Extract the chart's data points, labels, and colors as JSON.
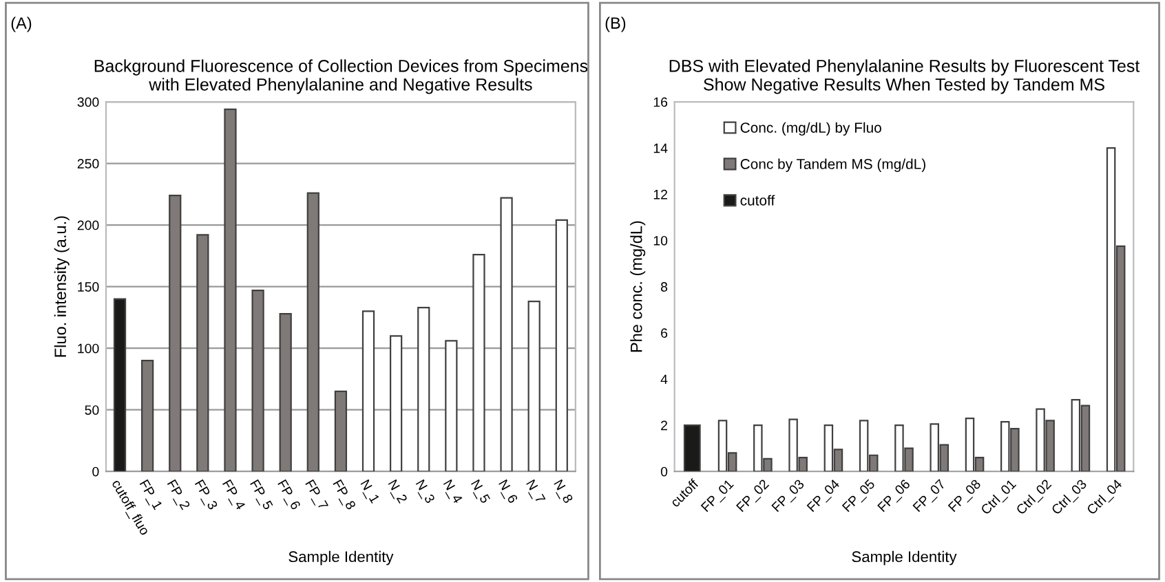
{
  "chart_data": [
    {
      "type": "bar",
      "title": "Background Fluorescence of Collection Devices from Specimens\nwith Elevated Phenylalanine and Negative Results",
      "xlabel": "Sample Identity",
      "ylabel": "Fluo. intensity (a.u.)",
      "annotations": [
        "(A)"
      ],
      "categories": [
        "cutoff_fluo",
        "FP_1",
        "FP_2",
        "FP_3",
        "FP_4",
        "FP_5",
        "FP_6",
        "FP_7",
        "FP_8",
        "N_1",
        "N_2",
        "N_3",
        "N_4",
        "N_5",
        "N_6",
        "N_7",
        "N_8"
      ],
      "values": [
        140,
        90,
        224,
        192,
        294,
        147,
        128,
        226,
        65,
        130,
        110,
        133,
        106,
        176,
        222,
        138,
        204
      ],
      "colors": [
        "#1a1a18",
        "#7f7a78",
        "#7f7a78",
        "#7f7a78",
        "#7f7a78",
        "#7f7a78",
        "#7f7a78",
        "#7f7a78",
        "#7f7a78",
        "#ffffff",
        "#ffffff",
        "#ffffff",
        "#ffffff",
        "#ffffff",
        "#ffffff",
        "#ffffff",
        "#ffffff"
      ],
      "ylim": [
        0,
        300
      ],
      "yticks": [
        0,
        50,
        100,
        150,
        200,
        250,
        300
      ],
      "grid": "y",
      "legend": false
    },
    {
      "type": "bar",
      "title": "DBS with Elevated Phenylalanine Results by Fluorescent Test\nShow Negative Results When Tested by Tandem MS",
      "xlabel": "Sample Identity",
      "ylabel": "Phe conc. (mg/dL)",
      "annotations": [
        "(B)"
      ],
      "categories": [
        "cutoff",
        "FP_01",
        "FP_02",
        "FP_03",
        "FP_04",
        "FP_05",
        "FP_06",
        "FP_07",
        "FP_08",
        "Ctrl_01",
        "Ctrl_02",
        "Ctrl_03",
        "Ctrl_04"
      ],
      "series": [
        {
          "name": "Conc. (mg/dL) by Fluo",
          "color": "#ffffff",
          "values": [
            null,
            2.2,
            2.0,
            2.25,
            2.0,
            2.2,
            2.0,
            2.05,
            2.3,
            2.15,
            2.7,
            3.1,
            14.0
          ]
        },
        {
          "name": "Conc by Tandem MS (mg/dL)",
          "color": "#7f7a78",
          "values": [
            null,
            0.8,
            0.55,
            0.6,
            0.95,
            0.7,
            1.0,
            1.15,
            0.6,
            1.85,
            2.2,
            2.85,
            9.75
          ]
        },
        {
          "name": "cutoff",
          "color": "#1a1a18",
          "values": [
            2.0,
            null,
            null,
            null,
            null,
            null,
            null,
            null,
            null,
            null,
            null,
            null,
            null
          ]
        }
      ],
      "ylim": [
        0,
        16
      ],
      "yticks": [
        0,
        2,
        4,
        6,
        8,
        10,
        12,
        14,
        16
      ],
      "grid": false,
      "legend": "top left"
    }
  ]
}
